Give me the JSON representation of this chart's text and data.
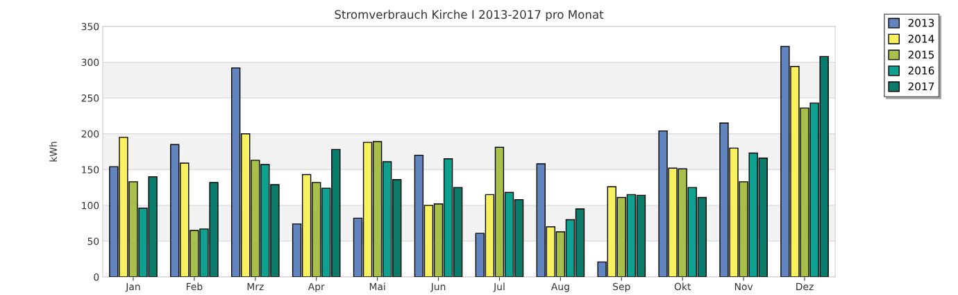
{
  "chart_data": {
    "type": "bar",
    "title": "Stromverbrauch Kirche I 2013-2017 pro Monat",
    "ylabel": "kWh",
    "categories": [
      "Jan",
      "Feb",
      "Mrz",
      "Apr",
      "Mai",
      "Jun",
      "Jul",
      "Aug",
      "Sep",
      "Okt",
      "Nov",
      "Dez"
    ],
    "series": [
      {
        "name": "2013",
        "color": "#6285c0",
        "values": [
          154,
          185,
          292,
          74,
          82,
          170,
          61,
          158,
          21,
          204,
          215,
          322
        ]
      },
      {
        "name": "2014",
        "color": "#f8f060",
        "values": [
          195,
          159,
          200,
          143,
          188,
          100,
          115,
          70,
          126,
          152,
          180,
          294
        ]
      },
      {
        "name": "2015",
        "color": "#a8bf4a",
        "values": [
          133,
          65,
          163,
          132,
          189,
          102,
          181,
          63,
          111,
          151,
          133,
          236
        ]
      },
      {
        "name": "2016",
        "color": "#10a090",
        "values": [
          96,
          67,
          157,
          124,
          161,
          165,
          118,
          80,
          115,
          125,
          173,
          243
        ]
      },
      {
        "name": "2017",
        "color": "#0a7a6a",
        "values": [
          140,
          132,
          129,
          178,
          136,
          125,
          108,
          95,
          114,
          111,
          166,
          308
        ]
      }
    ],
    "ylim": [
      0,
      350
    ],
    "yticks": [
      0,
      50,
      100,
      150,
      200,
      250,
      300,
      350
    ],
    "grid": "y",
    "legend": "top right",
    "bands": [
      {
        "axis": "y",
        "from": 50,
        "to": 100,
        "color": "#f2f2f2"
      },
      {
        "axis": "y",
        "from": 150,
        "to": 200,
        "color": "#f2f2f2"
      },
      {
        "axis": "y",
        "from": 250,
        "to": 300,
        "color": "#f2f2f2"
      }
    ]
  }
}
